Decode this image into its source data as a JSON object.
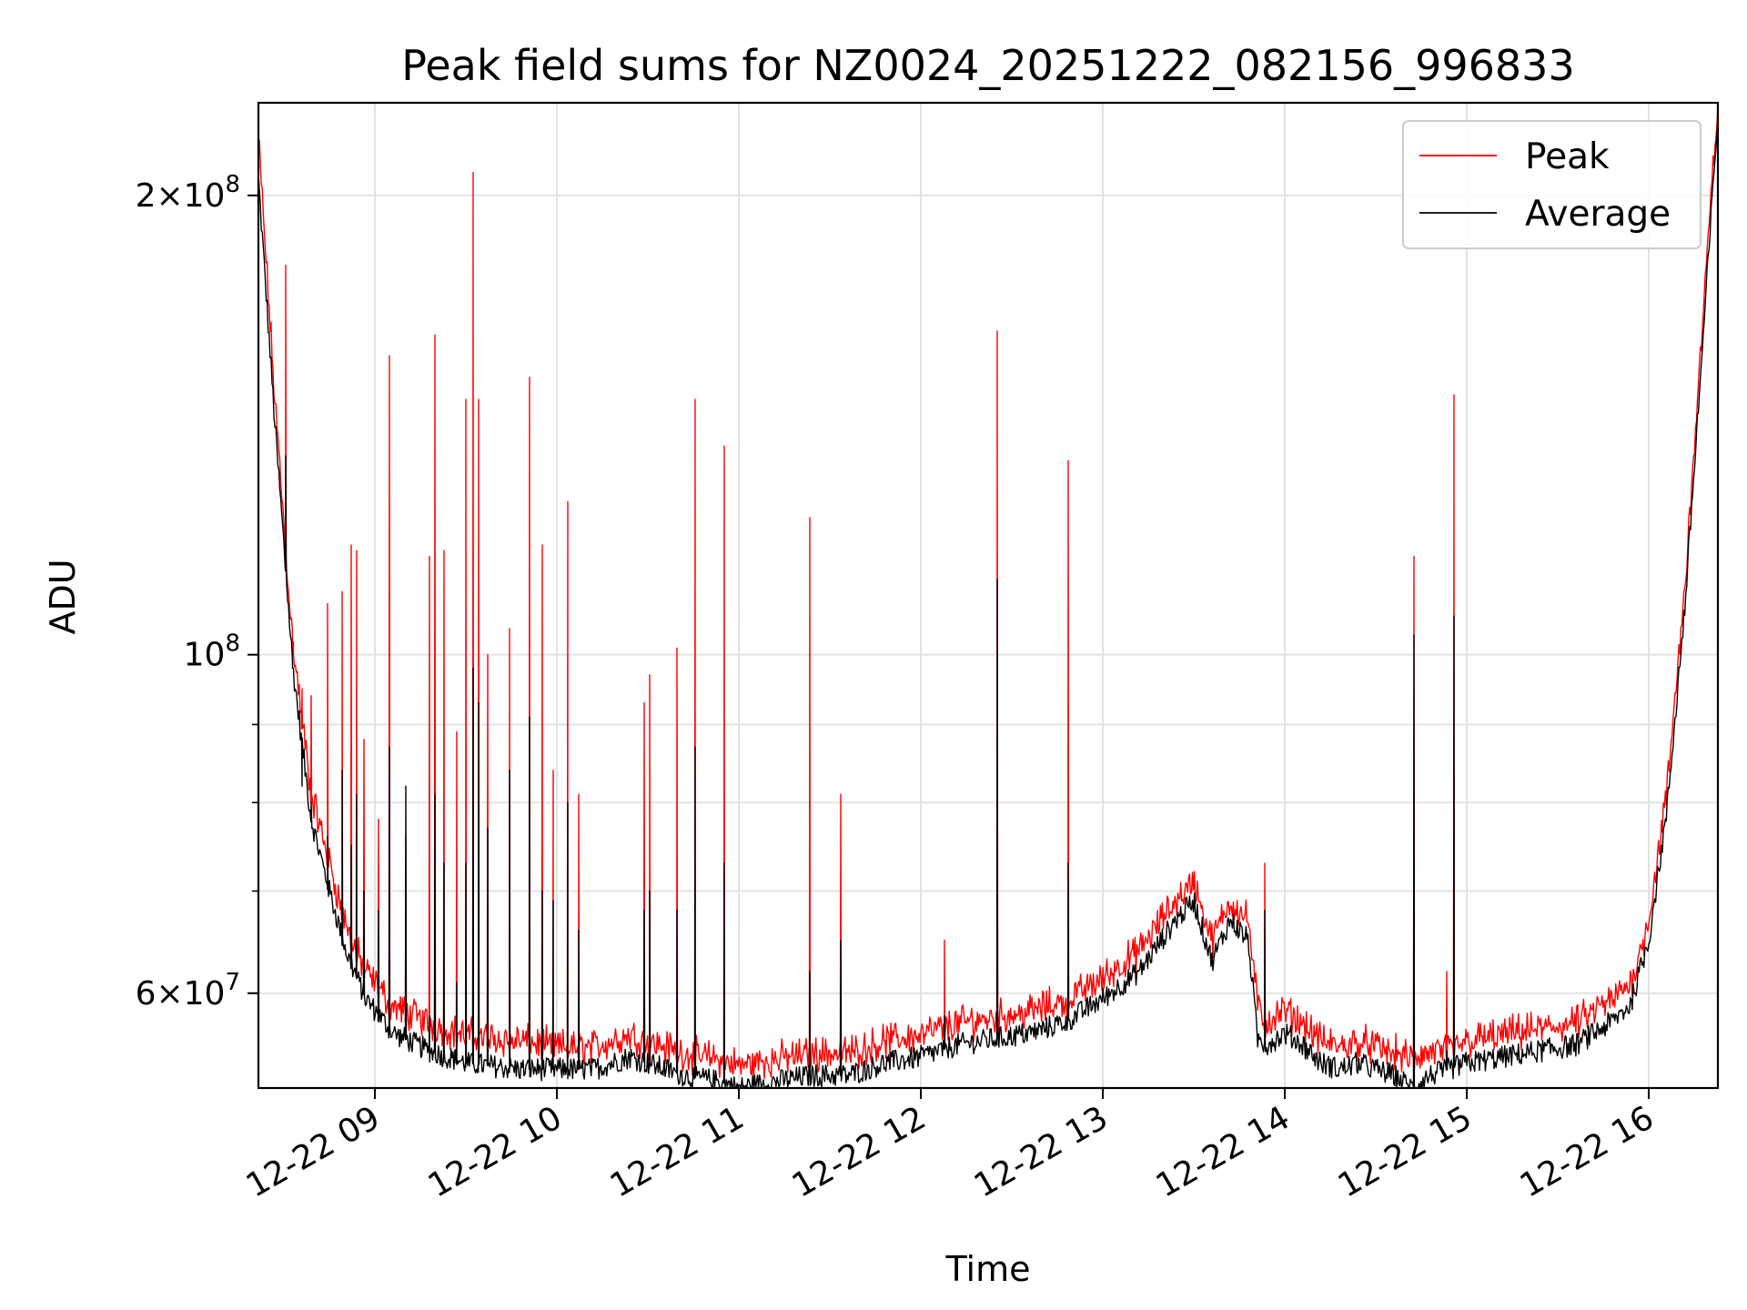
{
  "chart_data": {
    "type": "line",
    "title": "Peak field sums for NZ0024_20251222_082156_996833",
    "xlabel": "Time",
    "ylabel": "ADU",
    "yscale": "log",
    "xlim": [
      8.36,
      16.38
    ],
    "ylim": [
      52000000,
      230000000
    ],
    "x_ticks": [
      {
        "x": 9,
        "label": "12-22 09"
      },
      {
        "x": 10,
        "label": "12-22 10"
      },
      {
        "x": 11,
        "label": "12-22 11"
      },
      {
        "x": 12,
        "label": "12-22 12"
      },
      {
        "x": 13,
        "label": "12-22 13"
      },
      {
        "x": 14,
        "label": "12-22 14"
      },
      {
        "x": 15,
        "label": "12-22 15"
      },
      {
        "x": 16,
        "label": "12-22 16"
      }
    ],
    "y_major_ticks": [
      {
        "y": 60000000,
        "base": "6",
        "exp": "7"
      },
      {
        "y": 100000000,
        "base": "",
        "exp": "8"
      },
      {
        "y": 200000000,
        "base": "2",
        "exp": "8"
      }
    ],
    "y_minor_ticks": [
      70000000,
      80000000,
      90000000
    ],
    "grid": true,
    "legend_position": "top-right",
    "series": [
      {
        "name": "Peak",
        "color": "#ff0000"
      },
      {
        "name": "Average",
        "color": "#000000"
      }
    ],
    "baseline": {
      "x": [
        8.36,
        8.45,
        8.55,
        8.65,
        8.75,
        8.85,
        8.95,
        9.1,
        9.3,
        9.5,
        9.8,
        10.0,
        10.2,
        10.4,
        10.5,
        10.7,
        10.9,
        11.0,
        11.2,
        11.4,
        11.6,
        11.8,
        12.0,
        12.2,
        12.4,
        12.6,
        12.8,
        13.0,
        13.2,
        13.4,
        13.5,
        13.6,
        13.7,
        13.8,
        13.85,
        13.9,
        14.0,
        14.1,
        14.2,
        14.3,
        14.4,
        14.5,
        14.6,
        14.7,
        14.8,
        14.9,
        15.0,
        15.2,
        15.4,
        15.6,
        15.7,
        15.8,
        15.9,
        16.0,
        16.1,
        16.2,
        16.3,
        16.38
      ],
      "peak": [
        215000000,
        145000000,
        100000000,
        80000000,
        72000000,
        65000000,
        61000000,
        58000000,
        56500000,
        55500000,
        55000000,
        54500000,
        54500000,
        55500000,
        55000000,
        54000000,
        53500000,
        53000000,
        53500000,
        54000000,
        54000000,
        55000000,
        55500000,
        56500000,
        57000000,
        57500000,
        58500000,
        60500000,
        63000000,
        68000000,
        70000000,
        64000000,
        68000000,
        66000000,
        58000000,
        56500000,
        57500000,
        56500000,
        55000000,
        54500000,
        55000000,
        54500000,
        54000000,
        53500000,
        54000000,
        54500000,
        55000000,
        55500000,
        56000000,
        56500000,
        57500000,
        58500000,
        60000000,
        66000000,
        80000000,
        110000000,
        165000000,
        228000000
      ],
      "avg": [
        205000000,
        142000000,
        98000000,
        78000000,
        70000000,
        63500000,
        59500000,
        56500000,
        55000000,
        54000000,
        53500000,
        53500000,
        53500000,
        54500000,
        54000000,
        53000000,
        52500000,
        52000000,
        52500000,
        53000000,
        53000000,
        54000000,
        54500000,
        55500000,
        56000000,
        56500000,
        57500000,
        59500000,
        62000000,
        67000000,
        69000000,
        63000000,
        67000000,
        65000000,
        56000000,
        55500000,
        56500000,
        55500000,
        54000000,
        53500000,
        54000000,
        53500000,
        53000000,
        52000000,
        53000000,
        53500000,
        54000000,
        54500000,
        55000000,
        55500000,
        56500000,
        57500000,
        59000000,
        65000000,
        79000000,
        108000000,
        162000000,
        226000000
      ]
    },
    "spikes": [
      {
        "x": 8.51,
        "peak": 180000000,
        "avg": 135000000
      },
      {
        "x": 8.55,
        "peak": 102000000,
        "avg": 98000000
      },
      {
        "x": 8.6,
        "peak": 95000000,
        "avg": 82000000
      },
      {
        "x": 8.65,
        "peak": 94000000,
        "avg": 80000000
      },
      {
        "x": 8.74,
        "peak": 108000000,
        "avg": 76000000
      },
      {
        "x": 8.82,
        "peak": 110000000,
        "avg": 84000000
      },
      {
        "x": 8.87,
        "peak": 118000000,
        "avg": 75000000
      },
      {
        "x": 8.9,
        "peak": 117000000,
        "avg": 81000000
      },
      {
        "x": 8.94,
        "peak": 88000000,
        "avg": 70000000
      },
      {
        "x": 9.02,
        "peak": 78000000,
        "avg": 68000000
      },
      {
        "x": 9.08,
        "peak": 157000000,
        "avg": 87000000
      },
      {
        "x": 9.17,
        "peak": 76000000,
        "avg": 82000000
      },
      {
        "x": 9.3,
        "peak": 116000000,
        "avg": 58000000
      },
      {
        "x": 9.33,
        "peak": 162000000,
        "avg": 81000000
      },
      {
        "x": 9.38,
        "peak": 117000000,
        "avg": 73000000
      },
      {
        "x": 9.45,
        "peak": 89000000,
        "avg": 61000000
      },
      {
        "x": 9.5,
        "peak": 147000000,
        "avg": 73000000
      },
      {
        "x": 9.54,
        "peak": 207000000,
        "avg": 98000000
      },
      {
        "x": 9.57,
        "peak": 147000000,
        "avg": 93000000
      },
      {
        "x": 9.62,
        "peak": 100000000,
        "avg": 77000000
      },
      {
        "x": 9.74,
        "peak": 104000000,
        "avg": 84000000
      },
      {
        "x": 9.85,
        "peak": 152000000,
        "avg": 91000000
      },
      {
        "x": 9.92,
        "peak": 118000000,
        "avg": 70000000
      },
      {
        "x": 9.98,
        "peak": 84000000,
        "avg": 69000000
      },
      {
        "x": 10.06,
        "peak": 126000000,
        "avg": 80000000
      },
      {
        "x": 10.12,
        "peak": 81000000,
        "avg": 66000000
      },
      {
        "x": 10.48,
        "peak": 93000000,
        "avg": 68000000
      },
      {
        "x": 10.51,
        "peak": 97000000,
        "avg": 70000000
      },
      {
        "x": 10.66,
        "peak": 101000000,
        "avg": 68000000
      },
      {
        "x": 10.76,
        "peak": 147000000,
        "avg": 87000000
      },
      {
        "x": 10.92,
        "peak": 137000000,
        "avg": 73000000
      },
      {
        "x": 11.39,
        "peak": 123000000,
        "avg": 62000000
      },
      {
        "x": 11.56,
        "peak": 81000000,
        "avg": 65000000
      },
      {
        "x": 12.13,
        "peak": 65000000,
        "avg": 58000000
      },
      {
        "x": 12.42,
        "peak": 163000000,
        "avg": 112000000
      },
      {
        "x": 12.81,
        "peak": 134000000,
        "avg": 73000000
      },
      {
        "x": 13.89,
        "peak": 73000000,
        "avg": 68000000
      },
      {
        "x": 14.71,
        "peak": 116000000,
        "avg": 103000000
      },
      {
        "x": 14.89,
        "peak": 62000000,
        "avg": 55000000
      },
      {
        "x": 14.93,
        "peak": 148000000,
        "avg": 106000000
      }
    ]
  }
}
